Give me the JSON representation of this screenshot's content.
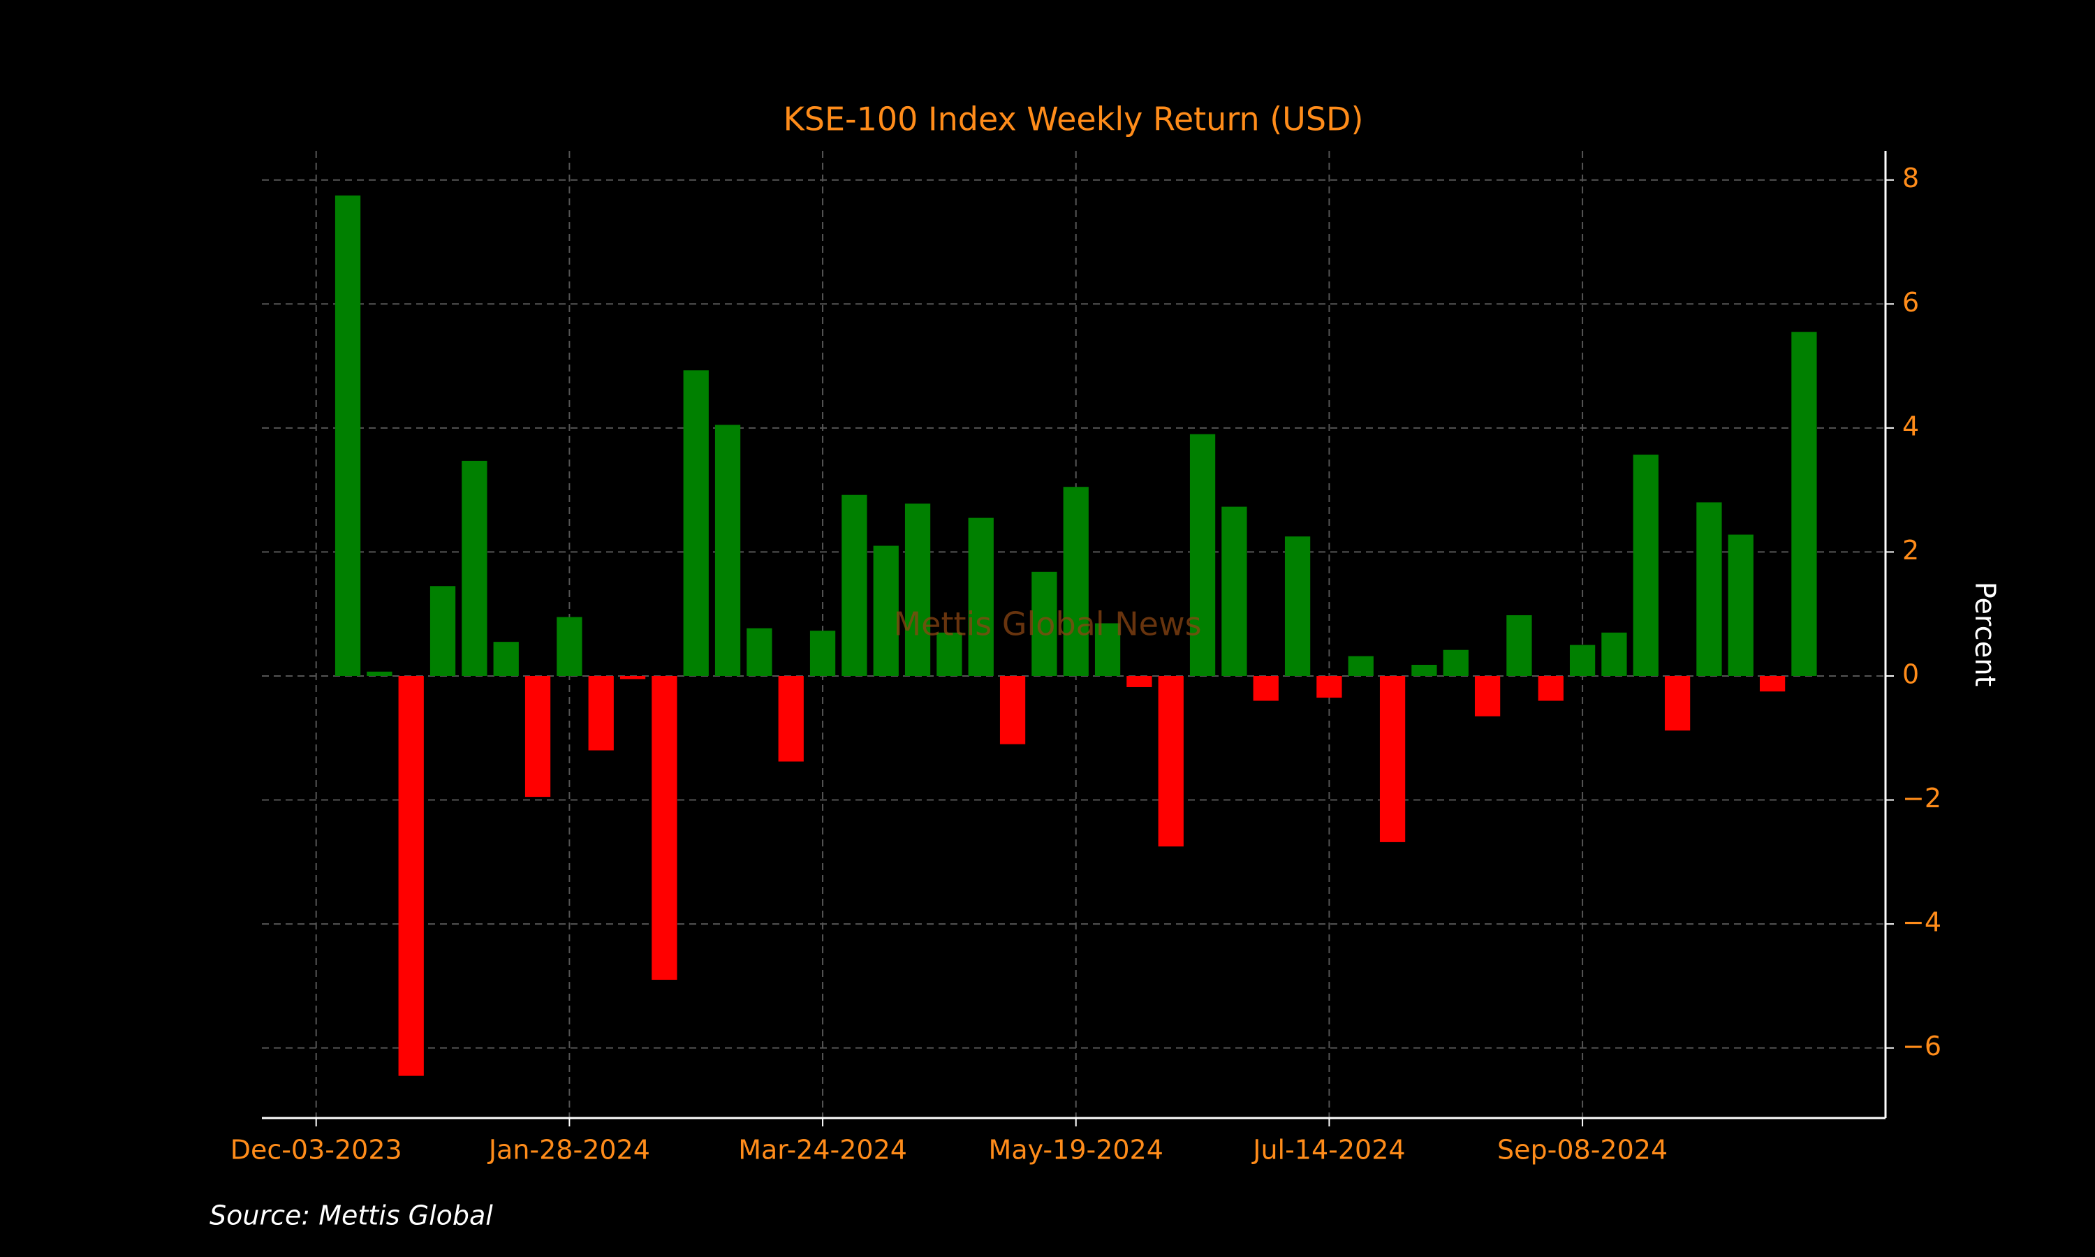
{
  "chart_data": {
    "type": "bar",
    "title": "KSE-100 Index Weekly Return (USD)",
    "ylabel": "Percent",
    "watermark": "Mettis Global News",
    "source": "Source: Mettis Global",
    "x": [
      "2023-12-10",
      "2023-12-17",
      "2023-12-24",
      "2023-12-31",
      "2024-01-07",
      "2024-01-14",
      "2024-01-21",
      "2024-01-28",
      "2024-02-04",
      "2024-02-11",
      "2024-02-18",
      "2024-02-25",
      "2024-03-03",
      "2024-03-10",
      "2024-03-17",
      "2024-03-24",
      "2024-03-31",
      "2024-04-07",
      "2024-04-14",
      "2024-04-21",
      "2024-04-28",
      "2024-05-05",
      "2024-05-12",
      "2024-05-19",
      "2024-05-26",
      "2024-06-02",
      "2024-06-09",
      "2024-06-16",
      "2024-06-23",
      "2024-06-30",
      "2024-07-07",
      "2024-07-14",
      "2024-07-21",
      "2024-07-28",
      "2024-08-04",
      "2024-08-11",
      "2024-08-18",
      "2024-08-25",
      "2024-09-01",
      "2024-09-08",
      "2024-09-15",
      "2024-09-22",
      "2024-09-29",
      "2024-10-06",
      "2024-10-13",
      "2024-10-20",
      "2024-10-27"
    ],
    "values": [
      7.75,
      0.07,
      -6.45,
      1.45,
      3.47,
      0.55,
      -1.95,
      0.95,
      -1.2,
      -0.05,
      -4.9,
      4.93,
      4.05,
      0.77,
      -1.38,
      0.73,
      2.92,
      2.1,
      2.78,
      0.7,
      2.55,
      -1.1,
      1.68,
      3.05,
      0.85,
      -0.18,
      -2.75,
      3.9,
      2.73,
      -0.4,
      2.25,
      -0.35,
      0.32,
      -2.68,
      0.18,
      0.42,
      -0.65,
      0.98,
      -0.4,
      0.5,
      0.7,
      3.57,
      -0.88,
      2.8,
      2.28,
      -0.25,
      5.55
    ],
    "positive_color": "#008000",
    "negative_color": "#ff0000",
    "xlim": [
      "2023-11-21",
      "2024-11-14"
    ],
    "xticks": [
      {
        "value": "2023-12-03",
        "label": "Dec-03-2023"
      },
      {
        "value": "2024-01-28",
        "label": "Jan-28-2024"
      },
      {
        "value": "2024-03-24",
        "label": "Mar-24-2024"
      },
      {
        "value": "2024-05-19",
        "label": "May-19-2024"
      },
      {
        "value": "2024-07-14",
        "label": "Jul-14-2024"
      },
      {
        "value": "2024-09-08",
        "label": "Sep-08-2024"
      }
    ],
    "ylim": [
      -7.13,
      8.47
    ],
    "yticks": [
      {
        "value": -6,
        "label": "−6"
      },
      {
        "value": -4,
        "label": "−4"
      },
      {
        "value": -2,
        "label": "−2"
      },
      0,
      2,
      4,
      6,
      8
    ],
    "grid": true,
    "yaxis_side": "right"
  }
}
